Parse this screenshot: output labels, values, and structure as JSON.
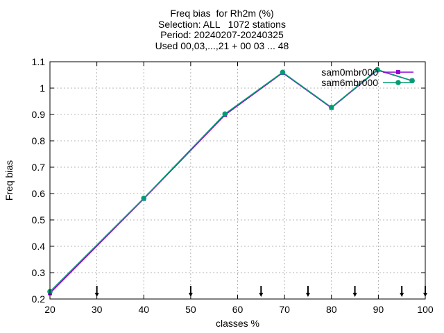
{
  "chart_data": {
    "type": "line",
    "title_lines": [
      "Freq bias  for Rh2m (%)",
      "Selection: ALL   1072 stations",
      "Period: 20240207-20240325",
      "Used 00,03,...,21 + 00 03 ... 48"
    ],
    "xlabel": "classes %",
    "ylabel": "Freq bias",
    "xlim": [
      20,
      100
    ],
    "ylim": [
      0.2,
      1.1
    ],
    "xticks": [
      "20",
      "30",
      "40",
      "50",
      "60",
      "70",
      "80",
      "90",
      "100"
    ],
    "yticks": [
      "0.2",
      "0.3",
      "0.4",
      "0.5",
      "0.6",
      "0.7",
      "0.8",
      "0.9",
      "1",
      "1.1"
    ],
    "grid": true,
    "legend_position": "top-right",
    "series": [
      {
        "name": "sam0mbr000",
        "color": "#9400d3",
        "x": [
          20,
          40,
          57.3,
          69.6,
          80,
          89.8,
          97.2
        ],
        "y": [
          0.222,
          0.58,
          0.898,
          1.058,
          0.925,
          1.068,
          1.028
        ]
      },
      {
        "name": "sam6mbr000",
        "color": "#009e73",
        "x": [
          20,
          40,
          57.3,
          69.6,
          80,
          89.8,
          97.2
        ],
        "y": [
          0.228,
          0.582,
          0.902,
          1.06,
          0.927,
          1.07,
          1.028
        ]
      }
    ],
    "markers": {
      "x": [
        30,
        50,
        65,
        75,
        85,
        95,
        100
      ],
      "color": "#000000"
    }
  }
}
